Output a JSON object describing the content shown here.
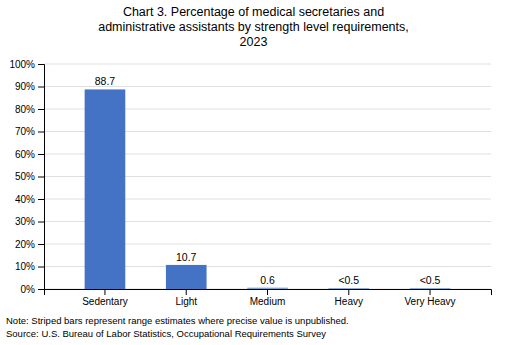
{
  "chart_data": {
    "type": "bar",
    "title": "Chart 3. Percentage of medical secretaries and\nadministrative assistants by strength level requirements,\n2023",
    "categories": [
      "Sedentary",
      "Light",
      "Medium",
      "Heavy",
      "Very Heavy"
    ],
    "values": [
      88.7,
      10.7,
      0.6,
      0.4,
      0.4
    ],
    "value_labels": [
      "88.7",
      "10.7",
      "0.6",
      "<0.5",
      "<0.5"
    ],
    "data_labels": true,
    "colors": [
      "#4472C4",
      "#4472C4",
      "#7BA7D4",
      "#7BA7D4",
      "#7BA7D4"
    ],
    "ylim": [
      0,
      100
    ],
    "yticks": [
      {
        "value": 0,
        "label": "0%"
      },
      {
        "value": 10,
        "label": "10%"
      },
      {
        "value": 20,
        "label": "20%"
      },
      {
        "value": 30,
        "label": "30%"
      },
      {
        "value": 40,
        "label": "40%"
      },
      {
        "value": 50,
        "label": "50%"
      },
      {
        "value": 60,
        "label": "60%"
      },
      {
        "value": 70,
        "label": "70%"
      },
      {
        "value": 80,
        "label": "80%"
      },
      {
        "value": 90,
        "label": "90%"
      },
      {
        "value": 100,
        "label": "100%"
      }
    ],
    "grid": true,
    "annotations": [
      "Note: Striped bars represent range estimates where precise value is unpublished.",
      "Source: U.S. Bureau of Labor Statistics, Occupational Requirements Survey"
    ]
  }
}
